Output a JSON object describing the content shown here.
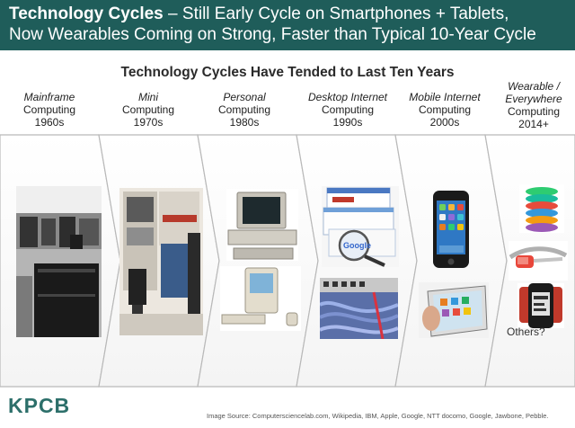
{
  "header": {
    "title_bold": "Technology Cycles",
    "title_rest": " – Still Early Cycle on Smartphones + Tablets,",
    "line2": "Now Wearables Coming on Strong, Faster than Typical 10-Year Cycle"
  },
  "subtitle": "Technology Cycles Have Tended to Last Ten Years",
  "eras": [
    {
      "italic": "Mainframe",
      "line2": "Computing",
      "line3": "1960s"
    },
    {
      "italic": "Mini",
      "line2": "Computing",
      "line3": "1970s"
    },
    {
      "italic": "Personal",
      "line2": "Computing",
      "line3": "1980s"
    },
    {
      "italic": "Desktop Internet",
      "line2": "Computing",
      "line3": "1990s"
    },
    {
      "italic": "Mobile Internet",
      "line2": "Computing",
      "line3": "2000s"
    },
    {
      "italic": "Wearable /",
      "italic2": "Everywhere",
      "line2": "Computing",
      "line3": "2014+"
    }
  ],
  "others_label": "Others?",
  "brand": "KPCB",
  "source": "Image Source: Computersciencelab.com, Wikipedia, IBM, Apple, Google, NTT docomo, Google, Jawbone, Pebble.",
  "colors": {
    "header_bg": "#1f5d5a",
    "brand": "#2c6f6a"
  }
}
